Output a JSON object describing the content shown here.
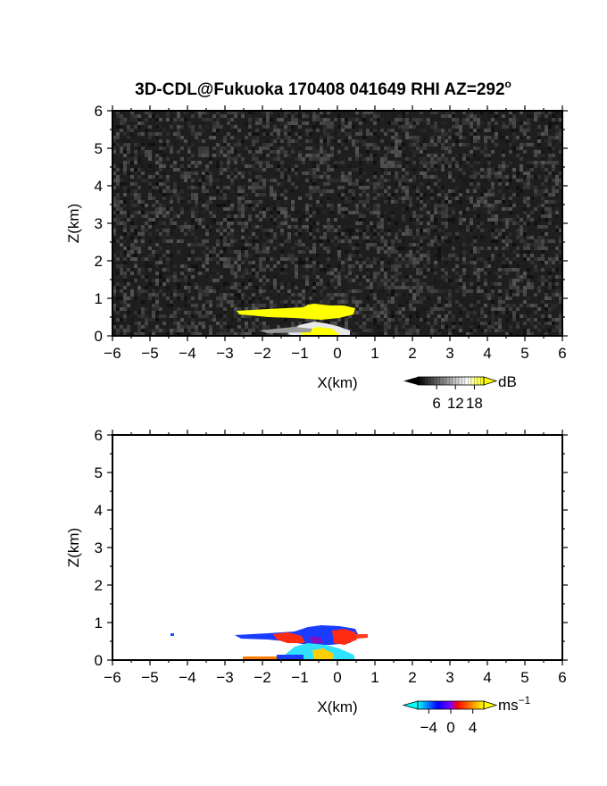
{
  "chart_data": [
    {
      "type": "heatmap",
      "title": "3D-CDL@Fukuoka 170408 041649 RHI AZ=292",
      "title_superscript": "o",
      "xlabel": "X(km)",
      "ylabel": "Z(km)",
      "xlim": [
        -6,
        6
      ],
      "ylim": [
        0,
        6
      ],
      "x_ticks": [
        "-6",
        "-5",
        "-4",
        "-3",
        "-2",
        "-1",
        "0",
        "1",
        "2",
        "3",
        "4",
        "5",
        "6"
      ],
      "y_ticks": [
        "0",
        "1",
        "2",
        "3",
        "4",
        "5",
        "6"
      ],
      "variable": "SNR",
      "background": "noise (dark gray speckle)",
      "colorbar": {
        "unit": "dB",
        "tick_labels": [
          "6",
          "12",
          "18"
        ],
        "ticks": [
          6,
          12,
          18
        ],
        "range": [
          0,
          21
        ],
        "colors": [
          "#000000",
          "#ffffff",
          "#ffff00"
        ]
      },
      "features": [
        {
          "label": "yellow echo layer",
          "x": [
            -2.6,
            0.6
          ],
          "z": [
            0.5,
            0.8
          ],
          "value_db": 20
        },
        {
          "label": "white echo near ground",
          "x": [
            -1.2,
            0.6
          ],
          "z": [
            0.0,
            0.35
          ],
          "value_db": 14
        }
      ]
    },
    {
      "type": "heatmap",
      "xlabel": "X(km)",
      "ylabel": "Z(km)",
      "xlim": [
        -6,
        6
      ],
      "ylim": [
        0,
        6
      ],
      "x_ticks": [
        "-6",
        "-5",
        "-4",
        "-3",
        "-2",
        "-1",
        "0",
        "1",
        "2",
        "3",
        "4",
        "5",
        "6"
      ],
      "y_ticks": [
        "0",
        "1",
        "2",
        "3",
        "4",
        "5",
        "6"
      ],
      "variable": "Doppler velocity",
      "colorbar": {
        "unit": "ms",
        "unit_superscript": "−1",
        "tick_labels": [
          "−4",
          "0",
          "4"
        ],
        "ticks": [
          -4,
          0,
          4
        ],
        "range": [
          -6,
          6
        ],
        "colors": [
          "#00ffff",
          "#0000ff",
          "#ff0000",
          "#ffff00"
        ]
      },
      "features": [
        {
          "label": "isolated echo",
          "x": [
            -4.45,
            -4.4
          ],
          "z": [
            0.6,
            0.66
          ],
          "value_ms": -3
        },
        {
          "label": "mixed velocity layer",
          "x": [
            -2.7,
            0.9
          ],
          "z": [
            0.45,
            0.85
          ],
          "value_ms": [
            -3,
            3
          ]
        },
        {
          "label": "cyan core",
          "x": [
            -1.0,
            0.5
          ],
          "z": [
            0.05,
            0.45
          ],
          "value_ms": -5
        },
        {
          "label": "near-ground layer",
          "x": [
            -2.5,
            0.5
          ],
          "z": [
            0.0,
            0.08
          ],
          "value_ms": [
            -2,
            2
          ]
        }
      ]
    }
  ]
}
